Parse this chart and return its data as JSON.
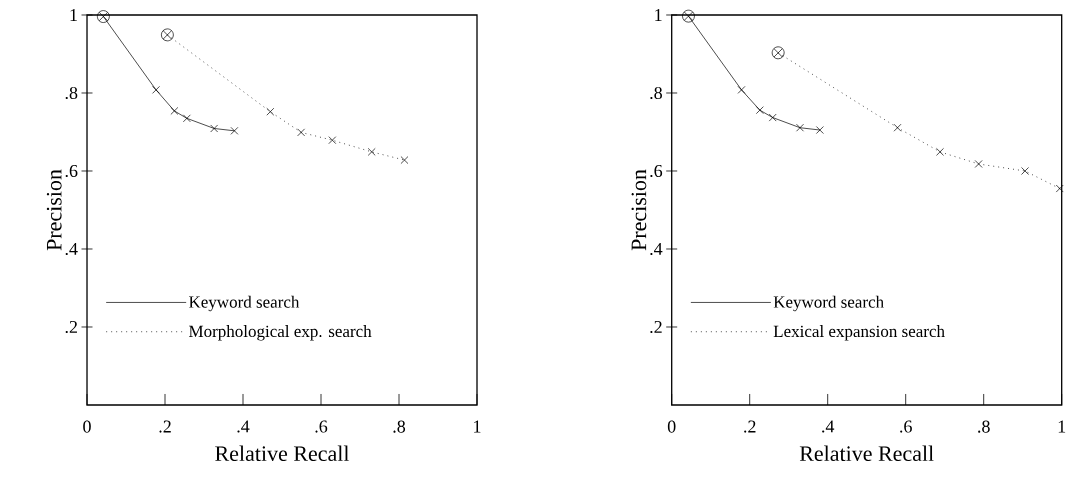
{
  "chart_data": [
    {
      "type": "line",
      "xlabel": "Relative Recall",
      "ylabel": "Precision",
      "xlim": [
        0,
        1
      ],
      "ylim": [
        0,
        1
      ],
      "xticks": [
        {
          "value": 0,
          "label": "0"
        },
        {
          "value": 0.2,
          "label": ".2"
        },
        {
          "value": 0.4,
          "label": ".4"
        },
        {
          "value": 0.6,
          "label": ".6"
        },
        {
          "value": 0.8,
          "label": ".8"
        },
        {
          "value": 1,
          "label": "1"
        }
      ],
      "yticks": [
        {
          "value": 0.2,
          "label": ".2"
        },
        {
          "value": 0.4,
          "label": ".4"
        },
        {
          "value": 0.6,
          "label": ".6"
        },
        {
          "value": 0.8,
          "label": ".8"
        },
        {
          "value": 1,
          "label": "1"
        }
      ],
      "legend": "bottom left",
      "marker": "cross",
      "grid": false,
      "series": [
        {
          "name": "Keyword search",
          "color": "#000000",
          "line_style": "solid",
          "x": [
            0.042,
            0.177,
            0.224,
            0.256,
            0.326,
            0.378
          ],
          "values": [
            0.996,
            0.808,
            0.754,
            0.735,
            0.709,
            0.703
          ]
        },
        {
          "name": "Morphological exp. search",
          "color": "#000000",
          "line_style": "dotted",
          "x": [
            0.206,
            0.47,
            0.549,
            0.629,
            0.73,
            0.814
          ],
          "values": [
            0.949,
            0.752,
            0.699,
            0.679,
            0.649,
            0.628
          ]
        }
      ]
    },
    {
      "type": "line",
      "xlabel": "Relative Recall",
      "ylabel": "Precision",
      "xlim": [
        0,
        1
      ],
      "ylim": [
        0,
        1
      ],
      "xticks": [
        {
          "value": 0,
          "label": "0"
        },
        {
          "value": 0.2,
          "label": ".2"
        },
        {
          "value": 0.4,
          "label": ".4"
        },
        {
          "value": 0.6,
          "label": ".6"
        },
        {
          "value": 0.8,
          "label": ".8"
        },
        {
          "value": 1,
          "label": "1"
        }
      ],
      "yticks": [
        {
          "value": 0.2,
          "label": ".2"
        },
        {
          "value": 0.4,
          "label": ".4"
        },
        {
          "value": 0.6,
          "label": ".6"
        },
        {
          "value": 0.8,
          "label": ".8"
        },
        {
          "value": 1,
          "label": "1"
        }
      ],
      "legend": "bottom left",
      "marker": "cross",
      "grid": false,
      "series": [
        {
          "name": "Keyword search",
          "color": "#000000",
          "line_style": "solid",
          "x": [
            0.043,
            0.179,
            0.226,
            0.259,
            0.329,
            0.38
          ],
          "values": [
            0.997,
            0.808,
            0.756,
            0.737,
            0.711,
            0.705
          ]
        },
        {
          "name": "Lexical expansion search",
          "color": "#000000",
          "line_style": "dotted",
          "x": [
            0.273,
            0.579,
            0.688,
            0.787,
            0.906,
            0.995
          ],
          "values": [
            0.903,
            0.711,
            0.649,
            0.618,
            0.6,
            0.555
          ]
        }
      ]
    }
  ]
}
